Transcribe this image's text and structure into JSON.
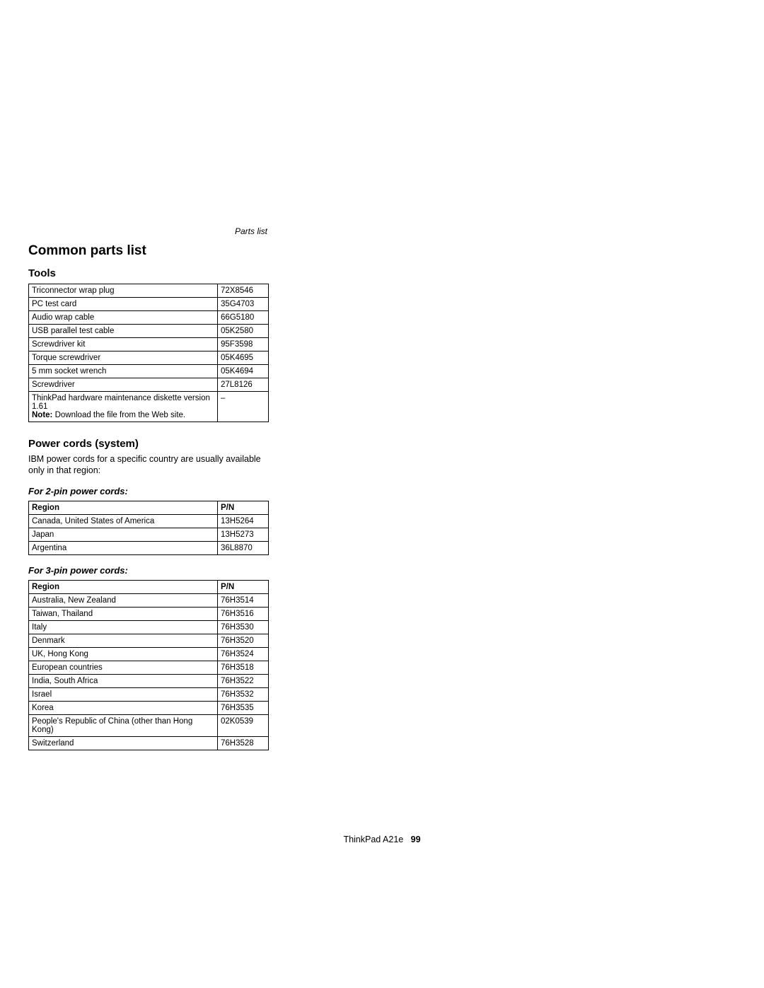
{
  "runningHead": "Parts list",
  "title": "Common parts list",
  "toolsHeading": "Tools",
  "toolsTable": {
    "rows": [
      {
        "name": "Triconnector wrap plug",
        "pn": "72X8546"
      },
      {
        "name": "PC test card",
        "pn": "35G4703"
      },
      {
        "name": "Audio wrap cable",
        "pn": "66G5180"
      },
      {
        "name": "USB parallel test cable",
        "pn": "05K2580"
      },
      {
        "name": "Screwdriver kit",
        "pn": "95F3598"
      },
      {
        "name": "Torque screwdriver",
        "pn": "05K4695"
      },
      {
        "name": "5 mm socket wrench",
        "pn": "05K4694"
      },
      {
        "name": "Screwdriver",
        "pn": "27L8126"
      }
    ],
    "noteRow": {
      "line1": "ThinkPad hardware maintenance diskette version 1.61",
      "noteLabel": "Note:",
      "noteText": " Download the file from the Web site.",
      "pn": "–"
    }
  },
  "powerCords": {
    "heading": "Power cords (system)",
    "intro": "IBM power cords for a specific country are usually available only in that region:",
    "twoPin": {
      "heading": "For 2-pin power cords:",
      "cols": {
        "region": "Region",
        "pn": "P/N"
      },
      "rows": [
        {
          "region": "Canada, United States of America",
          "pn": "13H5264"
        },
        {
          "region": "Japan",
          "pn": "13H5273"
        },
        {
          "region": "Argentina",
          "pn": "36L8870"
        }
      ]
    },
    "threePin": {
      "heading": "For 3-pin power cords:",
      "cols": {
        "region": "Region",
        "pn": "P/N"
      },
      "rows": [
        {
          "region": "Australia, New Zealand",
          "pn": "76H3514"
        },
        {
          "region": "Taiwan, Thailand",
          "pn": "76H3516"
        },
        {
          "region": "Italy",
          "pn": "76H3530"
        },
        {
          "region": "Denmark",
          "pn": "76H3520"
        },
        {
          "region": "UK, Hong Kong",
          "pn": "76H3524"
        },
        {
          "region": "European countries",
          "pn": "76H3518"
        },
        {
          "region": "India, South Africa",
          "pn": "76H3522"
        },
        {
          "region": "Israel",
          "pn": "76H3532"
        },
        {
          "region": "Korea",
          "pn": "76H3535"
        },
        {
          "region": "People's Republic of China (other than Hong Kong)",
          "pn": "02K0539"
        },
        {
          "region": "Switzerland",
          "pn": "76H3528"
        }
      ]
    }
  },
  "footer": {
    "model": "ThinkPad A21e",
    "page": "99"
  }
}
